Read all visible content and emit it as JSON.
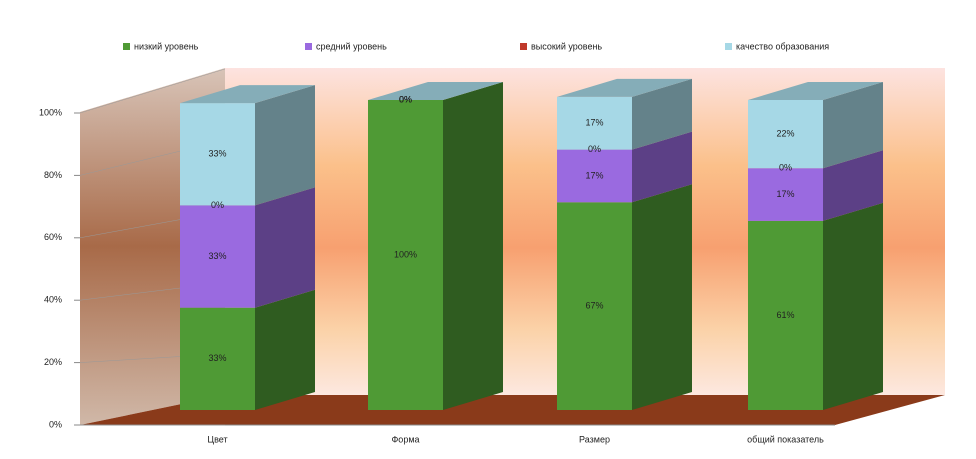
{
  "chart_data": {
    "type": "bar3d_stacked",
    "categories": [
      "Цвет",
      "Форма",
      "Размер",
      "общий показатель"
    ],
    "series": [
      {
        "name": "низкий уровень",
        "color": "#4f9a35",
        "values": [
          33,
          100,
          67,
          61
        ],
        "value_labels": [
          "33%",
          "100%",
          "67%",
          "61%"
        ]
      },
      {
        "name": "средний уровень",
        "color": "#9a6ae0",
        "values": [
          33,
          0,
          17,
          17
        ],
        "value_labels": [
          "33%",
          "0%",
          "17%",
          "17%"
        ]
      },
      {
        "name": "высокий уровень",
        "color": "#c0392b",
        "values": [
          0,
          0,
          0,
          0
        ],
        "value_labels": [
          "0%",
          "0%",
          "0%",
          "0%"
        ]
      },
      {
        "name": "качество образования",
        "color": "#a6d8e6",
        "values": [
          33,
          0,
          17,
          22
        ],
        "value_labels": [
          "33%",
          "0%",
          "17%",
          "22%"
        ]
      }
    ],
    "ylim": [
      0,
      100
    ],
    "yticks": [
      {
        "value": 0,
        "label": "0%"
      },
      {
        "value": 20,
        "label": "20%"
      },
      {
        "value": 40,
        "label": "40%"
      },
      {
        "value": 60,
        "label": "60%"
      },
      {
        "value": 80,
        "label": "80%"
      },
      {
        "value": 100,
        "label": "100%"
      }
    ],
    "grid": true,
    "legend": "top"
  }
}
